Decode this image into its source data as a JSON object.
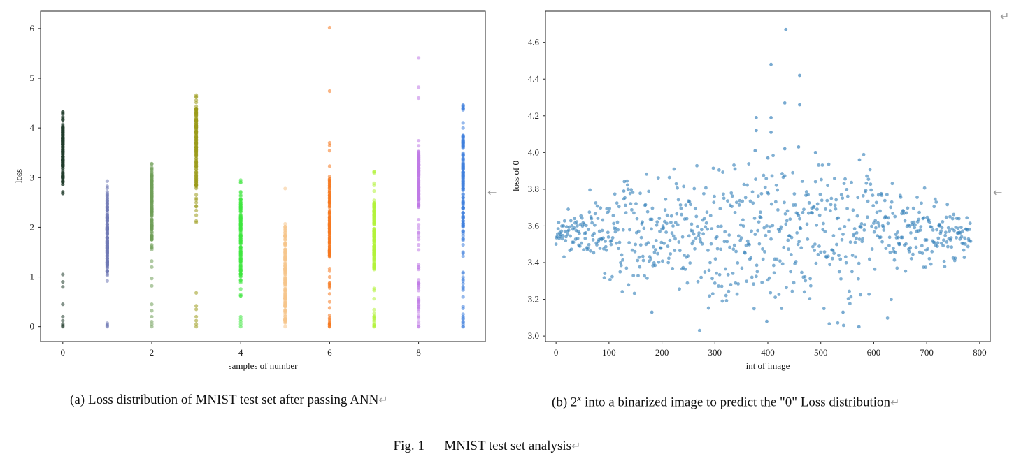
{
  "chart_data": [
    {
      "type": "scatter",
      "id": "a",
      "xlabel": "samples of number",
      "ylabel": "loss",
      "xlim": [
        -0.5,
        9.5
      ],
      "ylim": [
        -0.3,
        6.35
      ],
      "xticks": [
        0,
        2,
        4,
        6,
        8
      ],
      "yticks": [
        0,
        1,
        2,
        3,
        4,
        5,
        6
      ],
      "grid": false,
      "legend": "none",
      "colors": [
        "#1f3a2a",
        "#6f79b4",
        "#6f9f58",
        "#9a9a1a",
        "#3ee63e",
        "#f6c48a",
        "#f5781f",
        "#b3f23a",
        "#c07ae6",
        "#3f7fdc"
      ],
      "series": [
        {
          "x": 0,
          "dense_range": [
            2.68,
            4.32
          ],
          "core_range": [
            2.9,
            4.05
          ],
          "outliers": [
            0.0,
            0.02,
            0.05,
            0.12,
            0.2,
            0.45,
            0.8,
            0.9,
            1.05
          ]
        },
        {
          "x": 1,
          "dense_range": [
            0.92,
            2.93
          ],
          "core_range": [
            1.1,
            2.6
          ],
          "outliers": [
            0.0,
            0.02,
            0.04,
            0.07
          ]
        },
        {
          "x": 2,
          "dense_range": [
            1.55,
            3.28
          ],
          "core_range": [
            1.75,
            3.1
          ],
          "outliers": [
            0.0,
            0.05,
            0.1,
            0.2,
            0.32,
            0.45,
            0.82,
            0.97,
            1.2,
            1.32
          ]
        },
        {
          "x": 3,
          "dense_range": [
            2.1,
            4.66
          ],
          "core_range": [
            2.8,
            4.4
          ],
          "outliers": [
            0.0,
            0.05,
            0.12,
            0.2,
            0.35,
            0.42,
            0.68
          ]
        },
        {
          "x": 4,
          "dense_range": [
            0.62,
            2.95
          ],
          "core_range": [
            0.9,
            2.65
          ],
          "outliers": [
            0.0,
            0.05,
            0.1,
            0.15,
            0.2
          ]
        },
        {
          "x": 5,
          "dense_range": [
            0.0,
            2.07
          ],
          "core_range": [
            0.1,
            1.85
          ],
          "outliers": [
            2.78
          ]
        },
        {
          "x": 6,
          "dense_range": [
            0.0,
            3.7
          ],
          "core_range": [
            1.4,
            3.0
          ],
          "outliers": [
            0.0,
            0.02,
            0.05,
            0.08,
            0.12,
            0.5,
            0.8,
            1.0,
            4.74,
            6.02
          ]
        },
        {
          "x": 7,
          "dense_range": [
            0.0,
            3.12
          ],
          "core_range": [
            1.15,
            2.5
          ],
          "outliers": [
            0.0,
            0.05,
            0.1,
            0.2
          ]
        },
        {
          "x": 8,
          "dense_range": [
            0.0,
            3.74
          ],
          "core_range": [
            2.4,
            3.55
          ],
          "outliers": [
            0.0,
            0.05,
            0.1,
            0.3,
            0.45,
            0.55,
            1.2,
            4.6,
            4.82,
            5.41
          ]
        },
        {
          "x": 9,
          "dense_range": [
            0.0,
            4.46
          ],
          "core_range": [
            1.9,
            3.85
          ],
          "outliers": [
            0.0,
            0.05,
            0.1,
            0.15,
            0.2,
            0.25,
            0.6,
            0.8,
            0.95,
            1.5
          ]
        }
      ]
    },
    {
      "type": "scatter",
      "id": "b",
      "xlabel": "int of image",
      "ylabel": "loss of 0",
      "xlim": [
        -20,
        820
      ],
      "ylim": [
        2.97,
        4.77
      ],
      "xticks": [
        0,
        100,
        200,
        300,
        400,
        500,
        600,
        700,
        800
      ],
      "yticks": [
        3.0,
        3.2,
        3.4,
        3.6,
        3.8,
        4.0,
        4.2,
        4.4,
        4.6
      ],
      "ytick_labels": [
        "3.0",
        "3.2",
        "3.4",
        "3.6",
        "3.8",
        "4.0",
        "4.2",
        "4.4",
        "4.6"
      ],
      "grid": false,
      "legend": "none",
      "color": "#2f7db8",
      "n_points": 784,
      "center": 3.56,
      "highlights": [
        {
          "x": 434,
          "y": 4.67
        },
        {
          "x": 406,
          "y": 4.48
        },
        {
          "x": 460,
          "y": 4.42
        },
        {
          "x": 432,
          "y": 4.27
        },
        {
          "x": 460,
          "y": 4.26
        },
        {
          "x": 378,
          "y": 4.19
        },
        {
          "x": 406,
          "y": 4.19
        },
        {
          "x": 378,
          "y": 4.12
        },
        {
          "x": 406,
          "y": 4.11
        },
        {
          "x": 376,
          "y": 4.01
        },
        {
          "x": 458,
          "y": 4.03
        },
        {
          "x": 432,
          "y": 4.02
        },
        {
          "x": 490,
          "y": 4.0
        },
        {
          "x": 400,
          "y": 3.97
        },
        {
          "x": 572,
          "y": 3.05
        },
        {
          "x": 398,
          "y": 3.08
        },
        {
          "x": 181,
          "y": 3.13
        },
        {
          "x": 542,
          "y": 3.13
        },
        {
          "x": 338,
          "y": 3.91
        },
        {
          "x": 573,
          "y": 3.96
        },
        {
          "x": 128,
          "y": 3.79
        }
      ]
    }
  ],
  "captions": {
    "a": "(a) Loss distribution of MNIST test set after passing ANN",
    "b_prefix": "(b)  2",
    "b_sup": "x",
    "b_suffix": "  into a binarized image to predict the \"0\" Loss distribution",
    "fig": "Fig. 1      MNIST test set analysis",
    "return_mark": "↵",
    "side_arrow": "←"
  }
}
